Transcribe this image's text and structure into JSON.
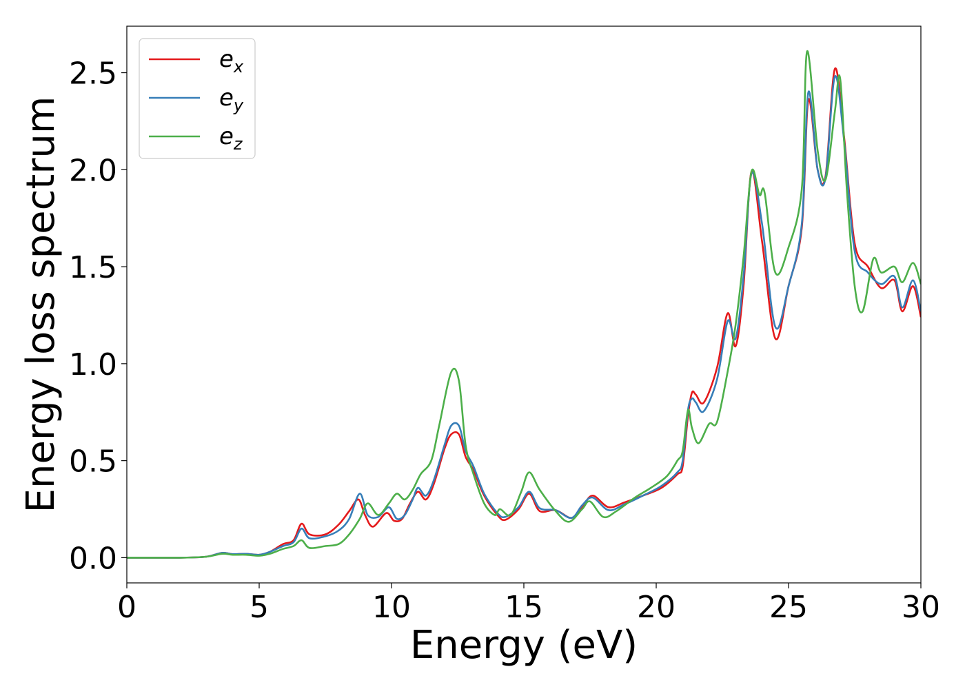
{
  "chart_data": {
    "type": "line",
    "title": "",
    "xlabel": "Energy (eV)",
    "ylabel": "Energy loss spectrum",
    "xlim": [
      0,
      30
    ],
    "ylim": [
      -0.13,
      2.74
    ],
    "xticks": [
      "0",
      "5",
      "10",
      "15",
      "20",
      "25",
      "30"
    ],
    "yticks": [
      "0.0",
      "0.5",
      "1.0",
      "1.5",
      "2.0",
      "2.5"
    ],
    "grid": false,
    "legend_position": "top-left",
    "series": [
      {
        "name": "ex",
        "base": "e",
        "sub": "x",
        "color": "#e41a1c",
        "points": [
          [
            0,
            0
          ],
          [
            2,
            0
          ],
          [
            3,
            0.005
          ],
          [
            3.6,
            0.025
          ],
          [
            4,
            0.018
          ],
          [
            4.5,
            0.02
          ],
          [
            5,
            0.015
          ],
          [
            5.4,
            0.03
          ],
          [
            5.9,
            0.07
          ],
          [
            6.3,
            0.09
          ],
          [
            6.6,
            0.175
          ],
          [
            6.9,
            0.12
          ],
          [
            7.5,
            0.12
          ],
          [
            8.0,
            0.17
          ],
          [
            8.4,
            0.24
          ],
          [
            8.75,
            0.3
          ],
          [
            9.0,
            0.22
          ],
          [
            9.3,
            0.16
          ],
          [
            9.8,
            0.23
          ],
          [
            10.1,
            0.19
          ],
          [
            10.4,
            0.2
          ],
          [
            10.7,
            0.28
          ],
          [
            11.0,
            0.34
          ],
          [
            11.3,
            0.3
          ],
          [
            11.6,
            0.38
          ],
          [
            12.0,
            0.56
          ],
          [
            12.25,
            0.635
          ],
          [
            12.55,
            0.635
          ],
          [
            12.8,
            0.52
          ],
          [
            13.1,
            0.45
          ],
          [
            13.5,
            0.32
          ],
          [
            14.0,
            0.22
          ],
          [
            14.3,
            0.195
          ],
          [
            14.8,
            0.25
          ],
          [
            15.2,
            0.33
          ],
          [
            15.6,
            0.24
          ],
          [
            16.2,
            0.245
          ],
          [
            16.8,
            0.205
          ],
          [
            17.2,
            0.26
          ],
          [
            17.6,
            0.32
          ],
          [
            18.2,
            0.26
          ],
          [
            18.8,
            0.285
          ],
          [
            19.5,
            0.32
          ],
          [
            20.2,
            0.36
          ],
          [
            20.8,
            0.43
          ],
          [
            21.0,
            0.47
          ],
          [
            21.2,
            0.73
          ],
          [
            21.35,
            0.85
          ],
          [
            21.5,
            0.84
          ],
          [
            21.8,
            0.8
          ],
          [
            22.3,
            0.98
          ],
          [
            22.7,
            1.26
          ],
          [
            23.0,
            1.09
          ],
          [
            23.3,
            1.4
          ],
          [
            23.6,
            1.99
          ],
          [
            24.0,
            1.63
          ],
          [
            24.5,
            1.13
          ],
          [
            25.0,
            1.4
          ],
          [
            25.5,
            1.7
          ],
          [
            25.75,
            2.36
          ],
          [
            26.1,
            2.0
          ],
          [
            26.4,
            1.97
          ],
          [
            26.75,
            2.52
          ],
          [
            27.1,
            2.17
          ],
          [
            27.5,
            1.62
          ],
          [
            28.0,
            1.5
          ],
          [
            28.5,
            1.39
          ],
          [
            29.0,
            1.43
          ],
          [
            29.3,
            1.27
          ],
          [
            29.7,
            1.4
          ],
          [
            30,
            1.24
          ]
        ]
      },
      {
        "name": "ey",
        "base": "e",
        "sub": "y",
        "color": "#377eb8",
        "points": [
          [
            0,
            0
          ],
          [
            2,
            0
          ],
          [
            3,
            0.005
          ],
          [
            3.6,
            0.025
          ],
          [
            4,
            0.018
          ],
          [
            4.5,
            0.02
          ],
          [
            5,
            0.015
          ],
          [
            5.4,
            0.03
          ],
          [
            5.9,
            0.06
          ],
          [
            6.3,
            0.08
          ],
          [
            6.6,
            0.15
          ],
          [
            6.9,
            0.1
          ],
          [
            7.5,
            0.11
          ],
          [
            8.0,
            0.14
          ],
          [
            8.4,
            0.2
          ],
          [
            8.8,
            0.33
          ],
          [
            9.1,
            0.22
          ],
          [
            9.5,
            0.21
          ],
          [
            9.9,
            0.26
          ],
          [
            10.2,
            0.2
          ],
          [
            10.5,
            0.22
          ],
          [
            10.8,
            0.3
          ],
          [
            11.0,
            0.36
          ],
          [
            11.3,
            0.32
          ],
          [
            11.6,
            0.4
          ],
          [
            12.0,
            0.58
          ],
          [
            12.25,
            0.68
          ],
          [
            12.55,
            0.68
          ],
          [
            12.8,
            0.55
          ],
          [
            13.1,
            0.47
          ],
          [
            13.5,
            0.33
          ],
          [
            14.0,
            0.23
          ],
          [
            14.3,
            0.21
          ],
          [
            14.8,
            0.26
          ],
          [
            15.2,
            0.34
          ],
          [
            15.6,
            0.255
          ],
          [
            16.2,
            0.245
          ],
          [
            16.8,
            0.205
          ],
          [
            17.2,
            0.27
          ],
          [
            17.6,
            0.31
          ],
          [
            18.2,
            0.245
          ],
          [
            18.8,
            0.275
          ],
          [
            19.5,
            0.32
          ],
          [
            20.2,
            0.37
          ],
          [
            20.8,
            0.44
          ],
          [
            21.0,
            0.5
          ],
          [
            21.2,
            0.76
          ],
          [
            21.35,
            0.82
          ],
          [
            21.5,
            0.8
          ],
          [
            21.8,
            0.755
          ],
          [
            22.3,
            0.92
          ],
          [
            22.7,
            1.22
          ],
          [
            23.0,
            1.13
          ],
          [
            23.3,
            1.45
          ],
          [
            23.6,
            1.98
          ],
          [
            24.0,
            1.72
          ],
          [
            24.5,
            1.19
          ],
          [
            25.0,
            1.4
          ],
          [
            25.5,
            1.72
          ],
          [
            25.75,
            2.4
          ],
          [
            26.1,
            2.0
          ],
          [
            26.4,
            1.96
          ],
          [
            26.75,
            2.48
          ],
          [
            27.1,
            2.15
          ],
          [
            27.5,
            1.58
          ],
          [
            28.0,
            1.47
          ],
          [
            28.5,
            1.41
          ],
          [
            29.0,
            1.45
          ],
          [
            29.3,
            1.29
          ],
          [
            29.7,
            1.43
          ],
          [
            30,
            1.27
          ]
        ]
      },
      {
        "name": "ez",
        "base": "e",
        "sub": "z",
        "color": "#4daf4a",
        "points": [
          [
            0,
            0
          ],
          [
            2,
            0
          ],
          [
            3,
            0.005
          ],
          [
            3.6,
            0.02
          ],
          [
            4,
            0.015
          ],
          [
            4.5,
            0.015
          ],
          [
            5,
            0.01
          ],
          [
            5.4,
            0.02
          ],
          [
            5.9,
            0.045
          ],
          [
            6.3,
            0.06
          ],
          [
            6.6,
            0.09
          ],
          [
            6.9,
            0.05
          ],
          [
            7.5,
            0.06
          ],
          [
            8.0,
            0.07
          ],
          [
            8.4,
            0.12
          ],
          [
            8.8,
            0.2
          ],
          [
            9.1,
            0.28
          ],
          [
            9.5,
            0.22
          ],
          [
            9.9,
            0.28
          ],
          [
            10.2,
            0.33
          ],
          [
            10.5,
            0.3
          ],
          [
            10.8,
            0.35
          ],
          [
            11.1,
            0.43
          ],
          [
            11.5,
            0.5
          ],
          [
            11.8,
            0.68
          ],
          [
            12.25,
            0.955
          ],
          [
            12.55,
            0.91
          ],
          [
            12.8,
            0.58
          ],
          [
            13.1,
            0.43
          ],
          [
            13.5,
            0.28
          ],
          [
            13.9,
            0.22
          ],
          [
            14.1,
            0.25
          ],
          [
            14.5,
            0.22
          ],
          [
            14.9,
            0.34
          ],
          [
            15.2,
            0.44
          ],
          [
            15.6,
            0.35
          ],
          [
            16.2,
            0.24
          ],
          [
            16.7,
            0.185
          ],
          [
            17.2,
            0.25
          ],
          [
            17.5,
            0.29
          ],
          [
            18.0,
            0.21
          ],
          [
            18.5,
            0.24
          ],
          [
            19.2,
            0.31
          ],
          [
            19.8,
            0.36
          ],
          [
            20.4,
            0.42
          ],
          [
            20.8,
            0.5
          ],
          [
            21.0,
            0.55
          ],
          [
            21.2,
            0.76
          ],
          [
            21.35,
            0.67
          ],
          [
            21.6,
            0.59
          ],
          [
            22.0,
            0.69
          ],
          [
            22.3,
            0.7
          ],
          [
            22.7,
            0.96
          ],
          [
            23.0,
            1.2
          ],
          [
            23.3,
            1.55
          ],
          [
            23.6,
            1.99
          ],
          [
            23.9,
            1.87
          ],
          [
            24.1,
            1.88
          ],
          [
            24.5,
            1.47
          ],
          [
            25.0,
            1.6
          ],
          [
            25.5,
            1.9
          ],
          [
            25.7,
            2.61
          ],
          [
            26.1,
            2.1
          ],
          [
            26.4,
            1.95
          ],
          [
            26.75,
            2.3
          ],
          [
            26.95,
            2.47
          ],
          [
            27.2,
            1.9
          ],
          [
            27.5,
            1.4
          ],
          [
            27.8,
            1.27
          ],
          [
            28.2,
            1.54
          ],
          [
            28.5,
            1.47
          ],
          [
            29.0,
            1.5
          ],
          [
            29.3,
            1.42
          ],
          [
            29.7,
            1.52
          ],
          [
            30,
            1.41
          ]
        ]
      }
    ]
  }
}
